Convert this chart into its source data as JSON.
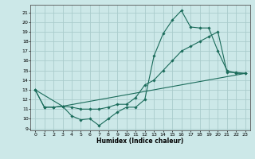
{
  "xlabel": "Humidex (Indice chaleur)",
  "background_color": "#cce8e8",
  "grid_color": "#aacccc",
  "line_color": "#1a6b5a",
  "xlim": [
    -0.5,
    23.5
  ],
  "ylim": [
    8.8,
    21.8
  ],
  "yticks": [
    9,
    10,
    11,
    12,
    13,
    14,
    15,
    16,
    17,
    18,
    19,
    20,
    21
  ],
  "xticks": [
    0,
    1,
    2,
    3,
    4,
    5,
    6,
    7,
    8,
    9,
    10,
    11,
    12,
    13,
    14,
    15,
    16,
    17,
    18,
    19,
    20,
    21,
    22,
    23
  ],
  "line1_x": [
    0,
    1,
    2,
    3,
    4,
    5,
    6,
    7,
    8,
    9,
    10,
    11,
    12,
    13,
    14,
    15,
    16,
    17,
    18,
    19,
    20,
    21,
    22,
    23
  ],
  "line1_y": [
    13,
    11.2,
    11.2,
    11.3,
    10.3,
    9.9,
    10.0,
    9.3,
    10.0,
    10.7,
    11.2,
    11.2,
    12.0,
    16.5,
    18.8,
    20.2,
    21.2,
    19.5,
    19.4,
    19.4,
    17.0,
    15.0,
    14.7,
    14.7
  ],
  "line2_x": [
    0,
    1,
    2,
    3,
    4,
    5,
    6,
    7,
    8,
    9,
    10,
    11,
    12,
    13,
    14,
    15,
    16,
    17,
    18,
    19,
    20,
    21,
    22,
    23
  ],
  "line2_y": [
    13,
    11.2,
    11.2,
    11.3,
    11.2,
    11.0,
    11.0,
    11.0,
    11.2,
    11.5,
    11.5,
    12.2,
    13.5,
    14.0,
    15.0,
    16.0,
    17.0,
    17.5,
    18.0,
    18.5,
    19.0,
    14.8,
    14.8,
    14.7
  ],
  "line3_x": [
    0,
    3,
    23
  ],
  "line3_y": [
    13,
    11.3,
    14.7
  ]
}
